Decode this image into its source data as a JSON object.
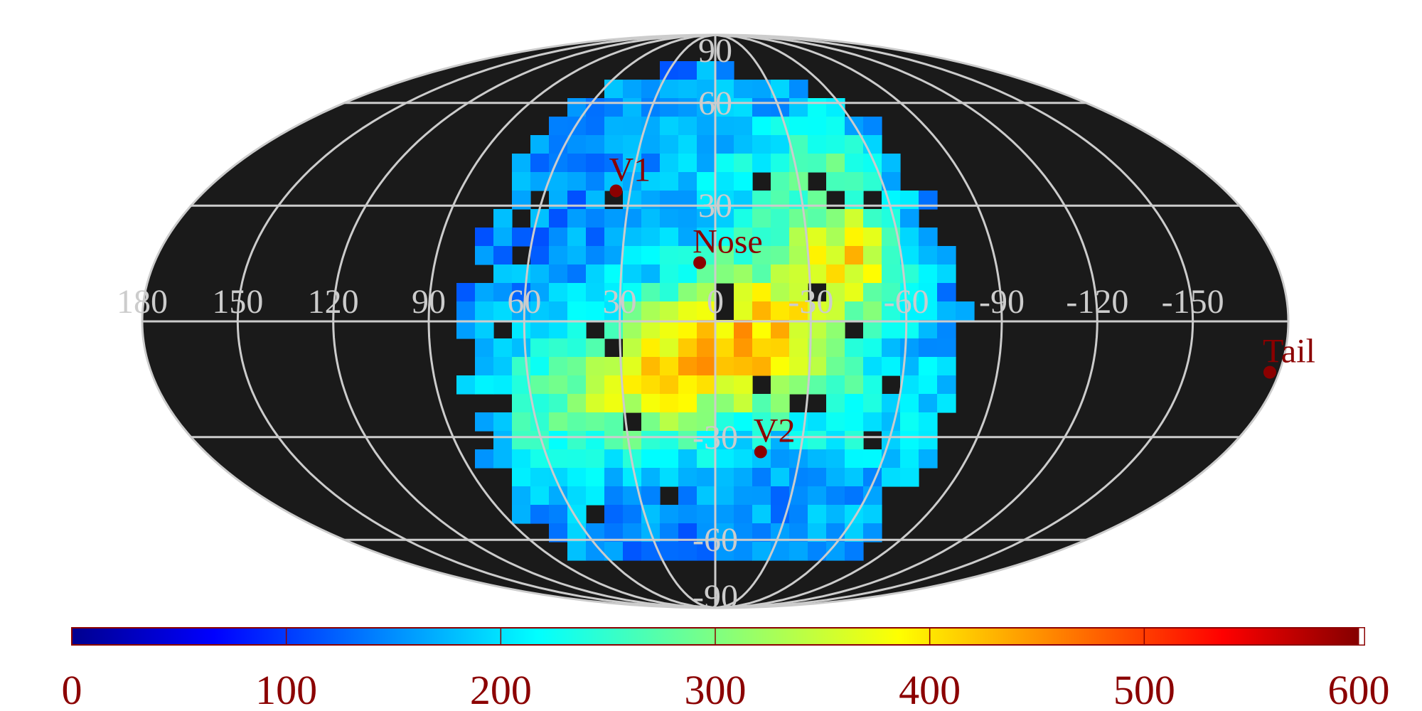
{
  "map": {
    "projection": "mollweide",
    "background": "#1a1a1a",
    "grid_color": "#cccccc",
    "marker_color": "#8b0000",
    "longitude_labels": [
      "180",
      "150",
      "120",
      "90",
      "60",
      "30",
      "0",
      "-30",
      "-60",
      "-90",
      "-120",
      "-150"
    ],
    "longitude_values": [
      180,
      150,
      120,
      90,
      60,
      30,
      0,
      -30,
      -60,
      -90,
      -120,
      -150
    ],
    "latitude_labels": [
      "90",
      "60",
      "30",
      "-30",
      "-60",
      "-90"
    ],
    "latitude_values": [
      90,
      60,
      30,
      -30,
      -60,
      -90
    ],
    "markers": [
      {
        "label": "V1",
        "lon": 35,
        "lat": 34
      },
      {
        "label": "Nose",
        "lon": 5,
        "lat": 15
      },
      {
        "label": "V2",
        "lon": -16,
        "lat": -34
      },
      {
        "label": "Tail",
        "lon": -177,
        "lat": -13
      }
    ],
    "color_scale": {
      "min": 0,
      "max": 600,
      "tick_labels": [
        "0",
        "100",
        "200",
        "300",
        "400",
        "500",
        "600"
      ],
      "tick_values": [
        0,
        100,
        200,
        300,
        400,
        500,
        600
      ]
    }
  }
}
